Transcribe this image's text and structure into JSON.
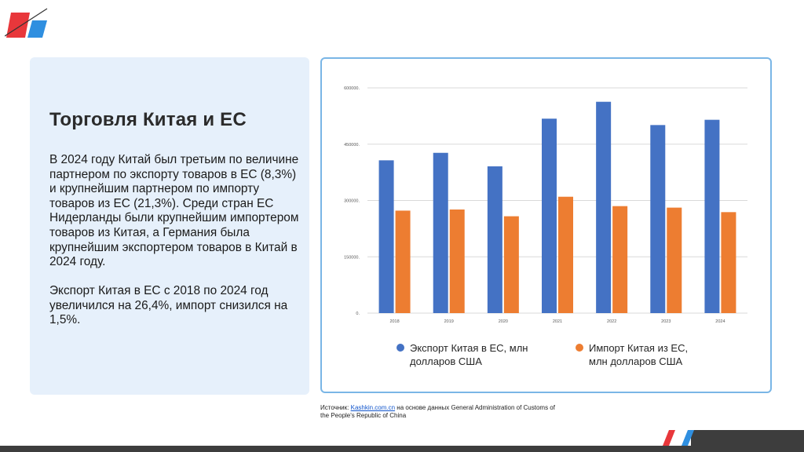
{
  "slide": {
    "title": "Торговля Китая и ЕС",
    "paragraph1": "В 2024 году Китай был третьим по величине партнером по экспорту товаров в ЕС (8,3%) и крупнейшим партнером по импорту товаров из ЕС (21,3%). Среди стран ЕС Нидерланды были крупнейшим импортером товаров из Китая, а Германия была крупнейшим экспортером товаров в Китай в 2024 году.",
    "paragraph2": "Экспорт Китая в ЕС с 2018 по 2024 год увеличился на 26,4%, импорт снизился на 1,5%.",
    "source_prefix": "Источник: ",
    "source_link": "Kashkin.com.cn",
    "source_suffix": " на основе данных General Administration of Customs of the People's Republic of China"
  },
  "colors": {
    "export": "#4472c4",
    "import": "#ed7d31",
    "panel_bg": "#e6f0fb",
    "panel_border": "#7ab6e6",
    "brand_red": "#e8373b",
    "brand_blue": "#2f8fe0"
  },
  "chart_data": {
    "type": "bar",
    "categories": [
      "2018",
      "2019",
      "2020",
      "2021",
      "2022",
      "2023",
      "2024"
    ],
    "series": [
      {
        "name": "Экспорт Китая в ЕС, млн долларов США",
        "values": [
          407000,
          427000,
          391000,
          518000,
          563000,
          501000,
          515000
        ]
      },
      {
        "name": "Импорт Китая из ЕС, млн долларов США",
        "values": [
          273000,
          276000,
          258000,
          310000,
          285000,
          281000,
          269000
        ]
      }
    ],
    "yticks": [
      "0.",
      "150000.",
      "300000.",
      "450000.",
      "600000."
    ],
    "ylim": [
      0,
      600000
    ],
    "grid": true,
    "legend_position": "bottom"
  }
}
